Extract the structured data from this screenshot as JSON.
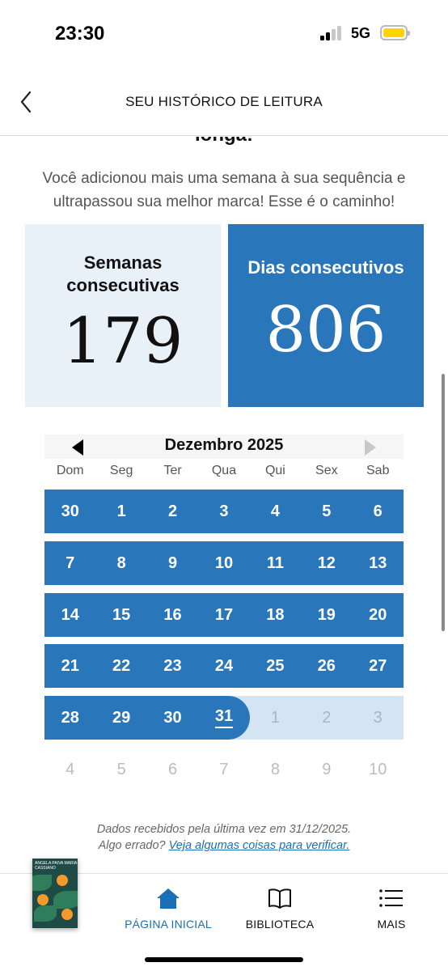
{
  "status_bar": {
    "time": "23:30",
    "network": "5G"
  },
  "header": {
    "title": "SEU HISTÓRICO DE LEITURA"
  },
  "content": {
    "heading_partial": "longa!",
    "message": "Você adicionou mais uma semana à sua sequência e ultrapassou sua melhor marca! Esse é o caminho!"
  },
  "stats": {
    "weeks": {
      "label": "Semanas consecutivas",
      "value": "179"
    },
    "days": {
      "label": "Dias consecutivos",
      "value": "806"
    }
  },
  "calendar": {
    "month": "Dezembro 2025",
    "weekdays": [
      "Dom",
      "Seg",
      "Ter",
      "Qua",
      "Qui",
      "Sex",
      "Sab"
    ],
    "weeks": [
      [
        "30",
        "1",
        "2",
        "3",
        "4",
        "5",
        "6"
      ],
      [
        "7",
        "8",
        "9",
        "10",
        "11",
        "12",
        "13"
      ],
      [
        "14",
        "15",
        "16",
        "17",
        "18",
        "19",
        "20"
      ],
      [
        "21",
        "22",
        "23",
        "24",
        "25",
        "26",
        "27"
      ],
      [
        "28",
        "29",
        "30",
        "31",
        "1",
        "2",
        "3"
      ],
      [
        "4",
        "5",
        "6",
        "7",
        "8",
        "9",
        "10"
      ]
    ]
  },
  "footnote": {
    "line1": "Dados recebidos pela última vez em 31/12/2025.",
    "line2_prefix": "Algo errado?",
    "link": "Veja algumas coisas para verificar."
  },
  "tabbar": {
    "book_cover_text": "ANGELA PAIVA MARIA CASSIANO",
    "home": "PÁGINA INICIAL",
    "library": "BIBLIOTECA",
    "more": "MAIS"
  },
  "colors": {
    "accent": "#2a76ba",
    "light_accent": "#e8f0f8",
    "future_day_bg": "#d5e4f2",
    "link": "#1a6fb8"
  }
}
